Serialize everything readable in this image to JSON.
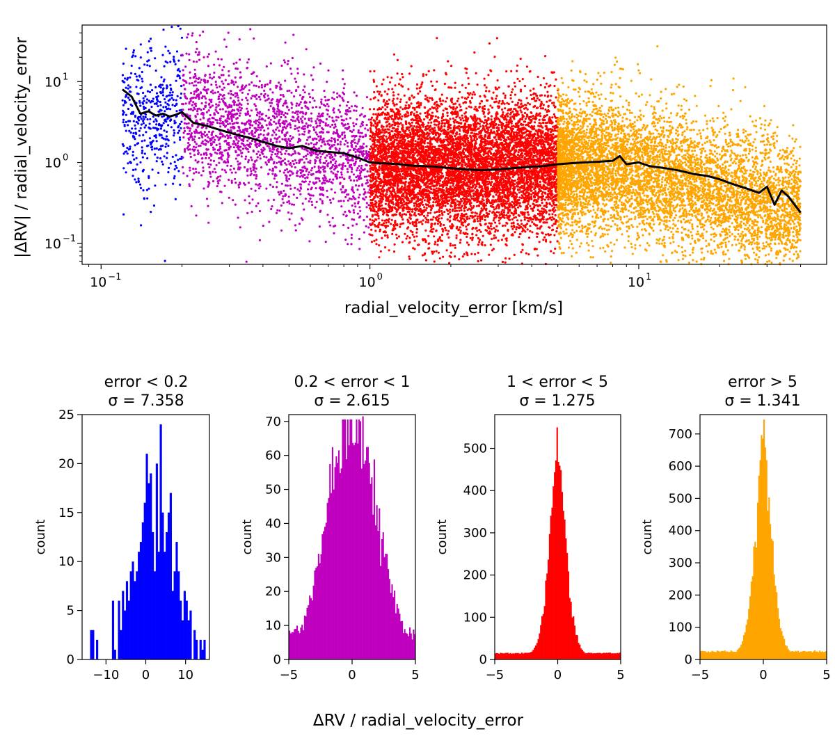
{
  "chart_data": [
    {
      "type": "scatter",
      "xscale": "log",
      "yscale": "log",
      "xlabel": "radial_velocity_error [km/s]",
      "ylabel": "|ΔRV| / radial_velocity_error",
      "xlim": [
        0.085,
        50
      ],
      "ylim": [
        0.055,
        50
      ],
      "xticks": [
        {
          "value": 0.1,
          "label": "10",
          "exp": "−1"
        },
        {
          "value": 1,
          "label": "10",
          "exp": "0"
        },
        {
          "value": 10,
          "label": "10",
          "exp": "1"
        }
      ],
      "yticks": [
        {
          "value": 0.1,
          "label": "10",
          "exp": "−1"
        },
        {
          "value": 1,
          "label": "10",
          "exp": "0"
        },
        {
          "value": 10,
          "label": "10",
          "exp": "1"
        }
      ],
      "groups": [
        {
          "name": "error < 0.2",
          "color": "#0000ff",
          "x_range": [
            0.12,
            0.2
          ],
          "count": 450
        },
        {
          "name": "0.2 < error < 1",
          "color": "#bf00bf",
          "x_range": [
            0.2,
            1.0
          ],
          "count": 2100
        },
        {
          "name": "1 < error < 5",
          "color": "#ff0000",
          "x_range": [
            1.0,
            5.0
          ],
          "count": 7500
        },
        {
          "name": "error > 5",
          "color": "#ffa500",
          "x_range": [
            5.0,
            40.0
          ],
          "count": 6500
        }
      ],
      "median_line": {
        "color": "#000000",
        "x": [
          0.12,
          0.13,
          0.14,
          0.15,
          0.16,
          0.17,
          0.18,
          0.19,
          0.2,
          0.22,
          0.25,
          0.28,
          0.32,
          0.36,
          0.4,
          0.45,
          0.5,
          0.56,
          0.63,
          0.7,
          0.8,
          0.9,
          1.0,
          1.1,
          1.25,
          1.4,
          1.6,
          1.8,
          2.0,
          2.3,
          2.6,
          3.0,
          3.4,
          3.9,
          4.4,
          5.0,
          5.6,
          6.3,
          7.1,
          8.0,
          8.5,
          9.0,
          10,
          11,
          12.5,
          14,
          16,
          18,
          20,
          22,
          25,
          28,
          30,
          32,
          34,
          36,
          38,
          40
        ],
        "y": [
          8.0,
          6.5,
          4.0,
          4.3,
          3.8,
          4.0,
          3.7,
          3.9,
          4.2,
          3.1,
          2.8,
          2.5,
          2.2,
          2.0,
          1.8,
          1.6,
          1.5,
          1.6,
          1.4,
          1.35,
          1.3,
          1.15,
          1.0,
          0.98,
          0.96,
          0.92,
          0.9,
          0.88,
          0.85,
          0.82,
          0.8,
          0.82,
          0.85,
          0.88,
          0.9,
          0.95,
          0.98,
          1.0,
          1.02,
          1.05,
          1.2,
          0.95,
          1.0,
          0.9,
          0.85,
          0.8,
          0.72,
          0.68,
          0.62,
          0.55,
          0.48,
          0.42,
          0.5,
          0.3,
          0.45,
          0.38,
          0.3,
          0.24
        ]
      }
    },
    {
      "type": "bar",
      "title_line1": "error < 0.2",
      "title_line2": "σ = 7.358",
      "color": "#0000ff",
      "xlabel": "",
      "ylabel": "count",
      "xlim": [
        -16,
        16
      ],
      "ylim": [
        0,
        25
      ],
      "xticks": [
        -10,
        0,
        10
      ],
      "yticks": [
        0,
        5,
        10,
        15,
        20,
        25
      ],
      "bin_start": -15,
      "bin_width": 0.5,
      "counts": [
        0,
        0,
        3,
        3,
        0,
        2,
        0,
        0,
        0,
        0,
        0,
        0,
        0,
        6,
        1,
        0,
        6,
        3,
        7,
        5,
        8,
        6,
        9,
        10,
        8,
        9,
        11,
        12,
        14,
        16,
        21,
        18,
        19,
        13,
        9,
        20,
        11,
        24,
        15,
        11,
        13,
        15,
        17,
        7,
        9,
        12,
        9,
        6,
        4,
        7,
        6,
        4,
        5,
        0,
        3,
        2,
        0,
        2,
        1,
        2
      ]
    },
    {
      "type": "bar",
      "title_line1": "0.2 < error < 1",
      "title_line2": "σ = 2.615",
      "color": "#bf00bf",
      "ylabel": "count",
      "xlim": [
        -5,
        5
      ],
      "ylim": [
        0,
        72
      ],
      "xticks": [
        -5,
        0,
        5
      ],
      "yticks": [
        0,
        10,
        20,
        30,
        40,
        50,
        60,
        70
      ],
      "sigma": 2.615,
      "peak": 70,
      "nbins": 100
    },
    {
      "type": "bar",
      "title_line1": "1 < error < 5",
      "title_line2": "σ = 1.275",
      "color": "#ff0000",
      "ylabel": "count",
      "xlim": [
        -5,
        5
      ],
      "ylim": [
        0,
        580
      ],
      "xticks": [
        -5,
        0,
        5
      ],
      "yticks": [
        0,
        100,
        200,
        300,
        400,
        500
      ],
      "sigma": 1.275,
      "peak": 555,
      "nbins": 100
    },
    {
      "type": "bar",
      "title_line1": "error > 5",
      "title_line2": "σ = 1.341",
      "color": "#ffa500",
      "ylabel": "count",
      "xlim": [
        -5,
        5
      ],
      "ylim": [
        0,
        760
      ],
      "xticks": [
        -5,
        0,
        5
      ],
      "yticks": [
        0,
        100,
        200,
        300,
        400,
        500,
        600,
        700
      ],
      "sigma": 1.341,
      "peak": 730,
      "nbins": 100
    }
  ],
  "shared_xlabel": "ΔRV / radial_velocity_error"
}
